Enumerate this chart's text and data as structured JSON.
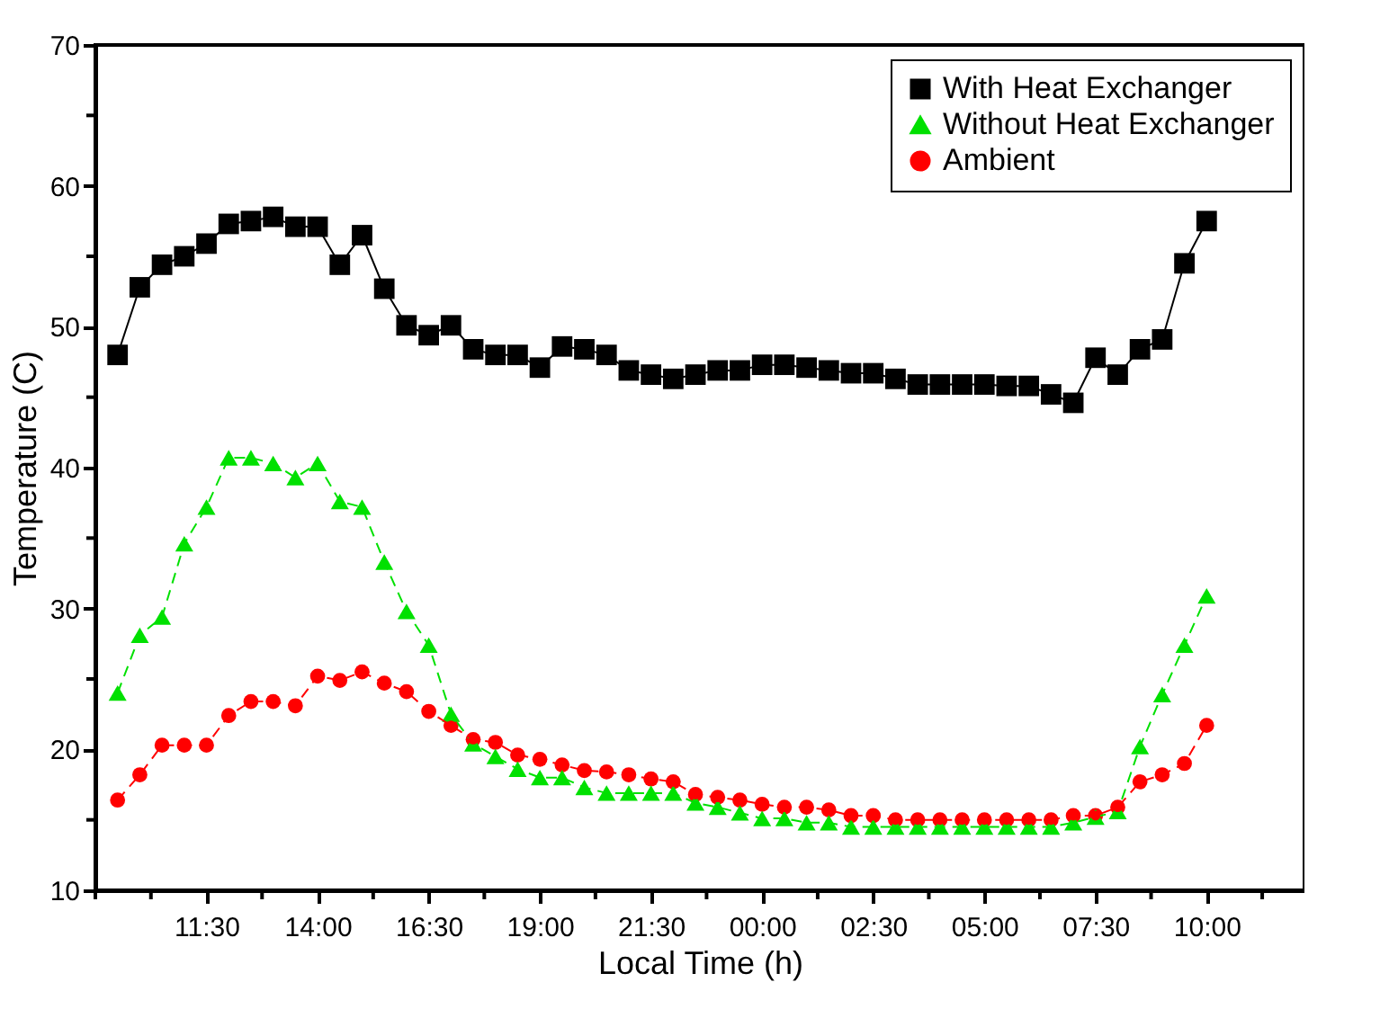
{
  "chart_data": {
    "type": "line",
    "xlabel": "Local Time (h)",
    "ylabel": "Temperature (C)",
    "x": [
      "2000-01-01T09:30",
      "2000-01-01T10:00",
      "2000-01-01T10:30",
      "2000-01-01T11:00",
      "2000-01-01T11:30",
      "2000-01-01T12:00",
      "2000-01-01T12:30",
      "2000-01-01T13:00",
      "2000-01-01T13:30",
      "2000-01-01T14:00",
      "2000-01-01T14:30",
      "2000-01-01T15:00",
      "2000-01-01T15:30",
      "2000-01-01T16:00",
      "2000-01-01T16:30",
      "2000-01-01T17:00",
      "2000-01-01T17:30",
      "2000-01-01T18:00",
      "2000-01-01T18:30",
      "2000-01-01T19:00",
      "2000-01-01T19:30",
      "2000-01-01T20:00",
      "2000-01-01T20:30",
      "2000-01-01T21:00",
      "2000-01-01T21:30",
      "2000-01-01T22:00",
      "2000-01-01T22:30",
      "2000-01-01T23:00",
      "2000-01-01T23:30",
      "2000-01-02T00:00",
      "2000-01-02T00:30",
      "2000-01-02T01:00",
      "2000-01-02T01:30",
      "2000-01-02T02:00",
      "2000-01-02T02:30",
      "2000-01-02T03:00",
      "2000-01-02T03:30",
      "2000-01-02T04:00",
      "2000-01-02T04:30",
      "2000-01-02T05:00",
      "2000-01-02T05:30",
      "2000-01-02T06:00",
      "2000-01-02T06:30",
      "2000-01-02T07:00",
      "2000-01-02T07:30",
      "2000-01-02T08:00",
      "2000-01-02T08:30",
      "2000-01-02T09:00",
      "2000-01-02T09:30",
      "2000-01-02T10:00"
    ],
    "series": [
      {
        "name": "With Heat Exchanger",
        "color": "#000000",
        "marker": "square",
        "line_style": "solid",
        "values": [
          48.0,
          52.8,
          54.4,
          55.0,
          55.9,
          57.3,
          57.5,
          57.8,
          57.1,
          57.1,
          54.4,
          56.5,
          52.7,
          50.1,
          49.4,
          50.1,
          48.4,
          48.0,
          48.0,
          47.1,
          48.6,
          48.4,
          48.0,
          46.9,
          46.6,
          46.3,
          46.6,
          46.9,
          46.9,
          47.3,
          47.3,
          47.1,
          46.9,
          46.7,
          46.7,
          46.3,
          45.9,
          45.9,
          45.9,
          45.9,
          45.8,
          45.8,
          45.2,
          44.6,
          47.8,
          46.6,
          48.4,
          49.1,
          54.5,
          57.5
        ]
      },
      {
        "name": "Without Heat Exchanger",
        "color": "#00e000",
        "marker": "triangle",
        "line_style": "dashed",
        "values": [
          24.0,
          28.1,
          29.4,
          34.6,
          37.2,
          40.7,
          40.7,
          40.3,
          39.3,
          40.3,
          37.6,
          37.2,
          33.3,
          29.8,
          27.4,
          22.5,
          20.4,
          19.5,
          18.6,
          18.0,
          18.0,
          17.3,
          16.9,
          16.9,
          16.9,
          16.9,
          16.2,
          15.9,
          15.5,
          15.1,
          15.1,
          14.8,
          14.8,
          14.5,
          14.5,
          14.5,
          14.5,
          14.5,
          14.5,
          14.5,
          14.5,
          14.5,
          14.5,
          14.8,
          15.2,
          15.6,
          20.2,
          23.9,
          27.4,
          30.9
        ]
      },
      {
        "name": "Ambient",
        "color": "#ff0000",
        "marker": "circle",
        "line_style": "dashed",
        "values": [
          16.4,
          18.2,
          20.3,
          20.3,
          20.3,
          22.4,
          23.4,
          23.4,
          23.1,
          25.2,
          24.9,
          25.5,
          24.7,
          24.1,
          22.7,
          21.7,
          20.7,
          20.5,
          19.6,
          19.3,
          18.9,
          18.5,
          18.4,
          18.2,
          17.9,
          17.7,
          16.8,
          16.6,
          16.4,
          16.1,
          15.9,
          15.9,
          15.7,
          15.3,
          15.3,
          15.0,
          15.0,
          15.0,
          15.0,
          15.0,
          15.0,
          15.0,
          15.0,
          15.3,
          15.3,
          15.9,
          17.7,
          18.2,
          19.0,
          21.7
        ]
      }
    ],
    "xlim": [
      "2000-01-01T09:00",
      "2000-01-02T12:12"
    ],
    "xticks": [
      {
        "value": "2000-01-01T09:00",
        "label": null
      },
      {
        "value": "2000-01-01T10:15",
        "label": null
      },
      {
        "value": "2000-01-01T11:30",
        "label": "11:30"
      },
      {
        "value": "2000-01-01T12:45",
        "label": null
      },
      {
        "value": "2000-01-01T14:00",
        "label": "14:00"
      },
      {
        "value": "2000-01-01T15:15",
        "label": null
      },
      {
        "value": "2000-01-01T16:30",
        "label": "16:30"
      },
      {
        "value": "2000-01-01T17:45",
        "label": null
      },
      {
        "value": "2000-01-01T19:00",
        "label": "19:00"
      },
      {
        "value": "2000-01-01T20:15",
        "label": null
      },
      {
        "value": "2000-01-01T21:30",
        "label": "21:30"
      },
      {
        "value": "2000-01-01T22:45",
        "label": null
      },
      {
        "value": "2000-01-02T00:00",
        "label": "00:00"
      },
      {
        "value": "2000-01-02T01:15",
        "label": null
      },
      {
        "value": "2000-01-02T02:30",
        "label": "02:30"
      },
      {
        "value": "2000-01-02T03:45",
        "label": null
      },
      {
        "value": "2000-01-02T05:00",
        "label": "05:00"
      },
      {
        "value": "2000-01-02T06:15",
        "label": null
      },
      {
        "value": "2000-01-02T07:30",
        "label": "07:30"
      },
      {
        "value": "2000-01-02T08:45",
        "label": null
      },
      {
        "value": "2000-01-02T10:00",
        "label": "10:00"
      },
      {
        "value": "2000-01-02T11:15",
        "label": null
      }
    ],
    "ylim": [
      10,
      70
    ],
    "yticks": [
      10,
      {
        "value": 15,
        "label": null
      },
      20,
      {
        "value": 25,
        "label": null
      },
      30,
      {
        "value": 35,
        "label": null
      },
      40,
      {
        "value": 45,
        "label": null
      },
      50,
      {
        "value": 55,
        "label": null
      },
      60,
      {
        "value": 65,
        "label": null
      },
      70
    ],
    "grid": false,
    "legend": "top right"
  }
}
